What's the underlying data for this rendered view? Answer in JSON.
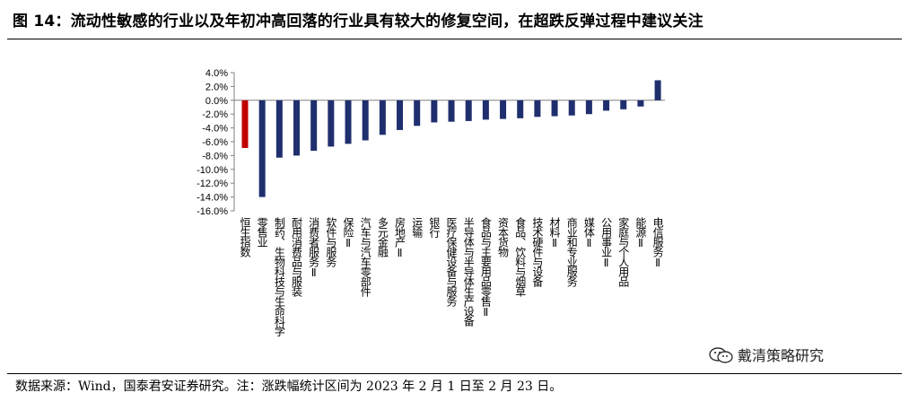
{
  "title": "图 14：流动性敏感的行业以及年初冲高回落的行业具有较大的修复空间，在超跌反弹过程中建议关注",
  "source_note": "数据来源：Wind，国泰君安证券研究。注：涨跌幅统计区间为 2023 年 2 月 1 日至 2 月 23 日。",
  "watermark": "戴清策略研究",
  "colors": {
    "highlight": "#C00000",
    "bar": "#1F2F6E"
  },
  "chart_data": {
    "type": "bar",
    "categories": [
      "恒生指数",
      "零售业",
      "制药、生物科技与生命科学",
      "耐用消费品与服装",
      "消费者服务Ⅱ",
      "软件与服务",
      "保险Ⅱ",
      "汽车与汽车零部件",
      "多元金融",
      "房地产Ⅱ",
      "运输",
      "银行",
      "医疗保健设备与服务",
      "半导体与半导体生产设备",
      "食品与主要用品零售Ⅱ",
      "资本货物",
      "食品、饮料与烟草",
      "技术硬件与设备",
      "材料Ⅱ",
      "商业和专业服务",
      "媒体Ⅱ",
      "公用事业Ⅱ",
      "家庭与个人用品",
      "能源Ⅱ",
      "电信服务Ⅱ"
    ],
    "values": [
      -6.9,
      -14.0,
      -8.3,
      -8.0,
      -7.3,
      -6.7,
      -6.3,
      -5.8,
      -5.0,
      -4.3,
      -3.7,
      -3.2,
      -3.1,
      -3.0,
      -2.8,
      -2.7,
      -2.6,
      -2.4,
      -2.3,
      -2.2,
      -2.0,
      -1.5,
      -1.3,
      -0.9,
      2.9
    ],
    "highlight_index": 0,
    "yticks": [
      "4.0%",
      "2.0%",
      "0.0%",
      "-2.0%",
      "-4.0%",
      "-6.0%",
      "-8.0%",
      "-10.0%",
      "-12.0%",
      "-14.0%",
      "-16.0%"
    ],
    "ylim": [
      -16,
      4
    ],
    "xlabel": "",
    "ylabel": "",
    "grid": false,
    "legend": "none"
  }
}
